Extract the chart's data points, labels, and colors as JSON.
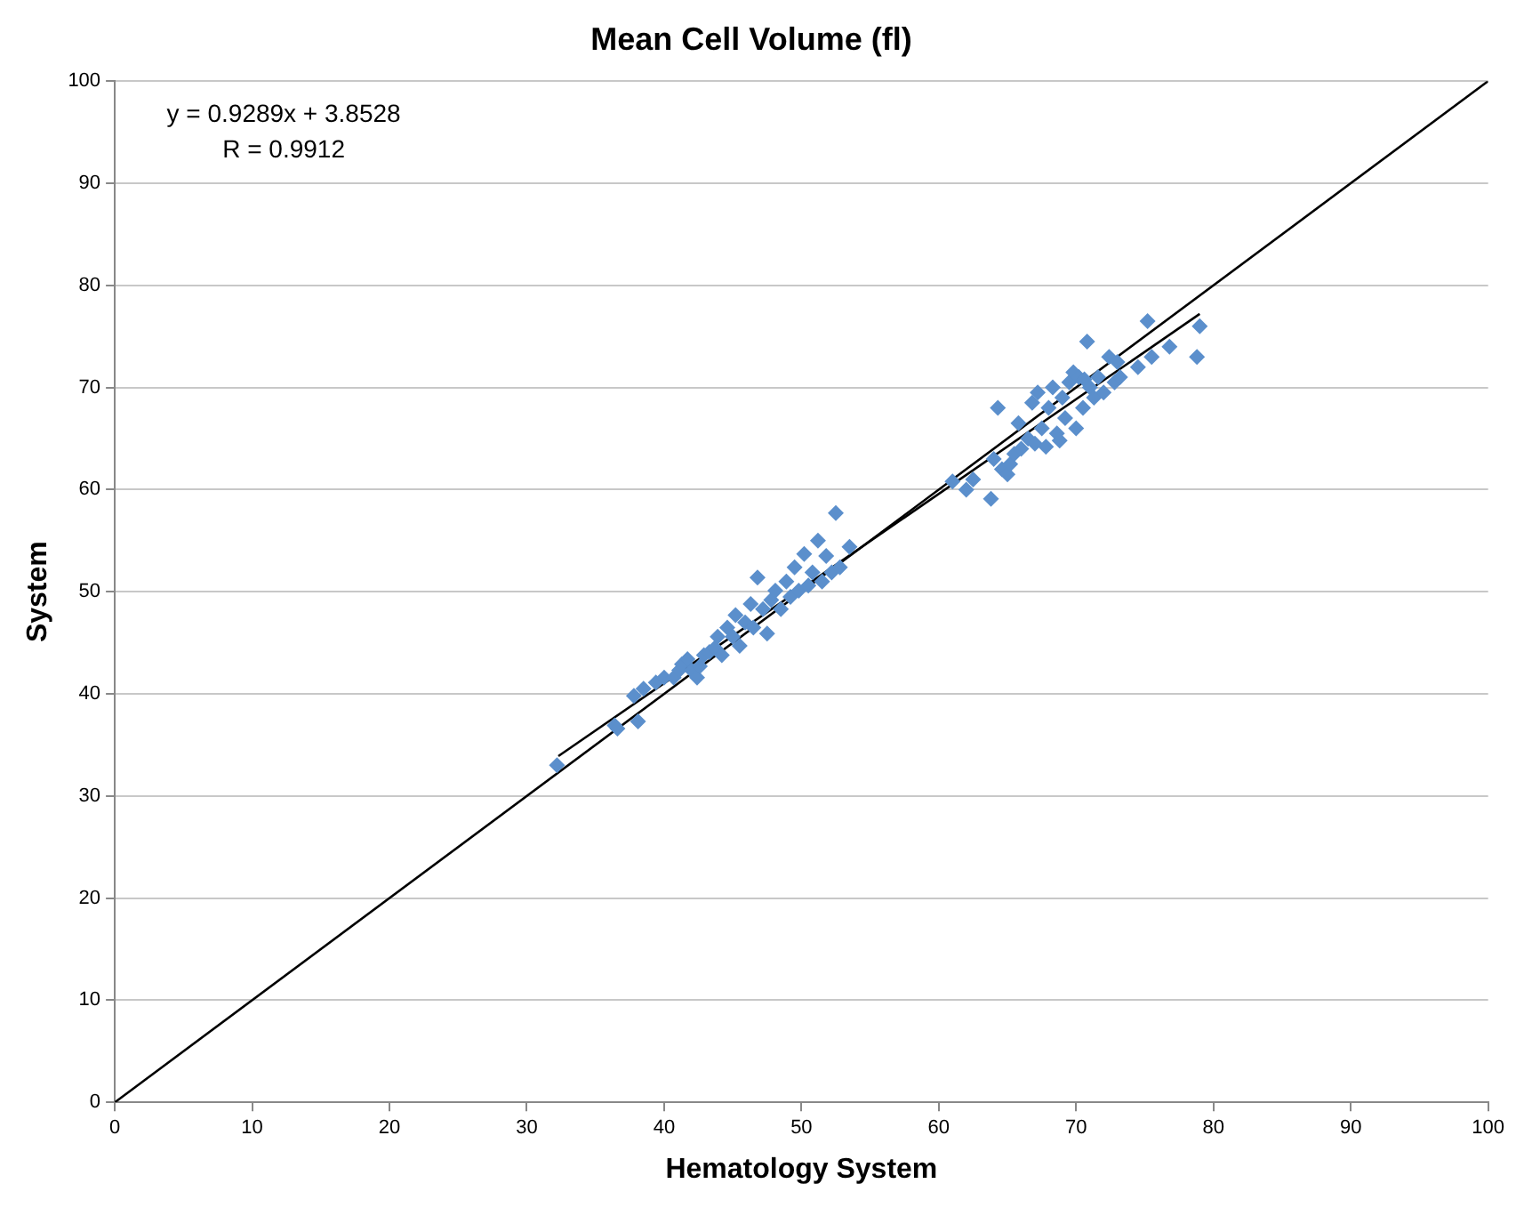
{
  "chart_data": {
    "type": "scatter",
    "title": "Mean Cell Volume (fl)",
    "xlabel": "Hematology System",
    "ylabel": "System",
    "xlim": [
      0,
      100
    ],
    "xticks": [
      0,
      10,
      20,
      30,
      40,
      50,
      60,
      70,
      80,
      90,
      100
    ],
    "ylim": [
      0,
      100
    ],
    "yticks": [
      0,
      10,
      20,
      30,
      40,
      50,
      60,
      70,
      80,
      90,
      100
    ],
    "grid": "y",
    "legend": false,
    "marker": "diamond",
    "annotations": [
      "y = 0.9289x + 3.8528",
      "R = 0.9912"
    ],
    "series": [
      {
        "color": "#5b8fcc",
        "x": [
          32.2,
          36.4,
          36.6,
          37.8,
          38.1,
          38.5,
          39.4,
          40.0,
          40.7,
          41.1,
          41.3,
          41.7,
          42.0,
          42.4,
          42.6,
          42.9,
          43.3,
          43.7,
          43.9,
          44.2,
          44.6,
          45.0,
          45.2,
          45.5,
          45.9,
          46.3,
          46.5,
          46.8,
          47.2,
          47.5,
          47.8,
          48.1,
          48.5,
          48.9,
          49.2,
          49.5,
          49.8,
          50.2,
          50.5,
          50.8,
          51.2,
          51.5,
          51.8,
          52.2,
          52.5,
          52.8,
          53.5,
          61.0,
          62.0,
          62.5,
          63.8,
          64.0,
          64.3,
          64.6,
          65.0,
          65.2,
          65.5,
          65.8,
          66.0,
          66.5,
          66.8,
          67.0,
          67.2,
          67.5,
          67.8,
          68.0,
          68.3,
          68.6,
          68.8,
          69.0,
          69.2,
          69.5,
          69.8,
          70.0,
          70.2,
          70.5,
          70.6,
          70.8,
          71.0,
          71.3,
          71.6,
          72.0,
          72.4,
          72.8,
          73.0,
          73.2,
          74.5,
          75.2,
          75.5,
          76.8,
          78.8,
          79.0
        ],
        "values": [
          33.0,
          36.9,
          36.6,
          39.8,
          37.3,
          40.5,
          41.1,
          41.6,
          41.6,
          42.3,
          42.9,
          43.4,
          42.3,
          41.6,
          42.7,
          43.8,
          44.1,
          44.5,
          45.6,
          43.8,
          46.5,
          45.6,
          47.7,
          44.7,
          47.0,
          48.8,
          46.5,
          51.4,
          48.3,
          45.9,
          49.2,
          50.1,
          48.3,
          51.0,
          49.5,
          52.4,
          50.1,
          53.7,
          50.6,
          51.9,
          55.0,
          51.0,
          53.5,
          51.9,
          57.7,
          52.4,
          54.4,
          60.8,
          60.0,
          61.0,
          59.1,
          63.0,
          68.0,
          62.0,
          61.5,
          62.5,
          63.5,
          66.5,
          64.0,
          65.0,
          68.5,
          64.5,
          69.5,
          66.0,
          64.2,
          68.0,
          70.0,
          65.5,
          64.8,
          69.0,
          67.0,
          70.5,
          71.5,
          66.0,
          71.0,
          68.0,
          70.8,
          74.5,
          70.0,
          69.0,
          71.0,
          69.5,
          73.0,
          70.5,
          72.5,
          71.0,
          72.0,
          76.5,
          73.0,
          74.0,
          73.0,
          76.0
        ]
      },
      {
        "type": "line",
        "color": "#000000",
        "marker": "none",
        "x": [
          0,
          100
        ],
        "values": [
          0,
          100
        ]
      },
      {
        "type": "line",
        "color": "#000000",
        "marker": "none",
        "x": [
          32.3,
          79
        ],
        "values": [
          33.9,
          77.2
        ]
      }
    ]
  }
}
